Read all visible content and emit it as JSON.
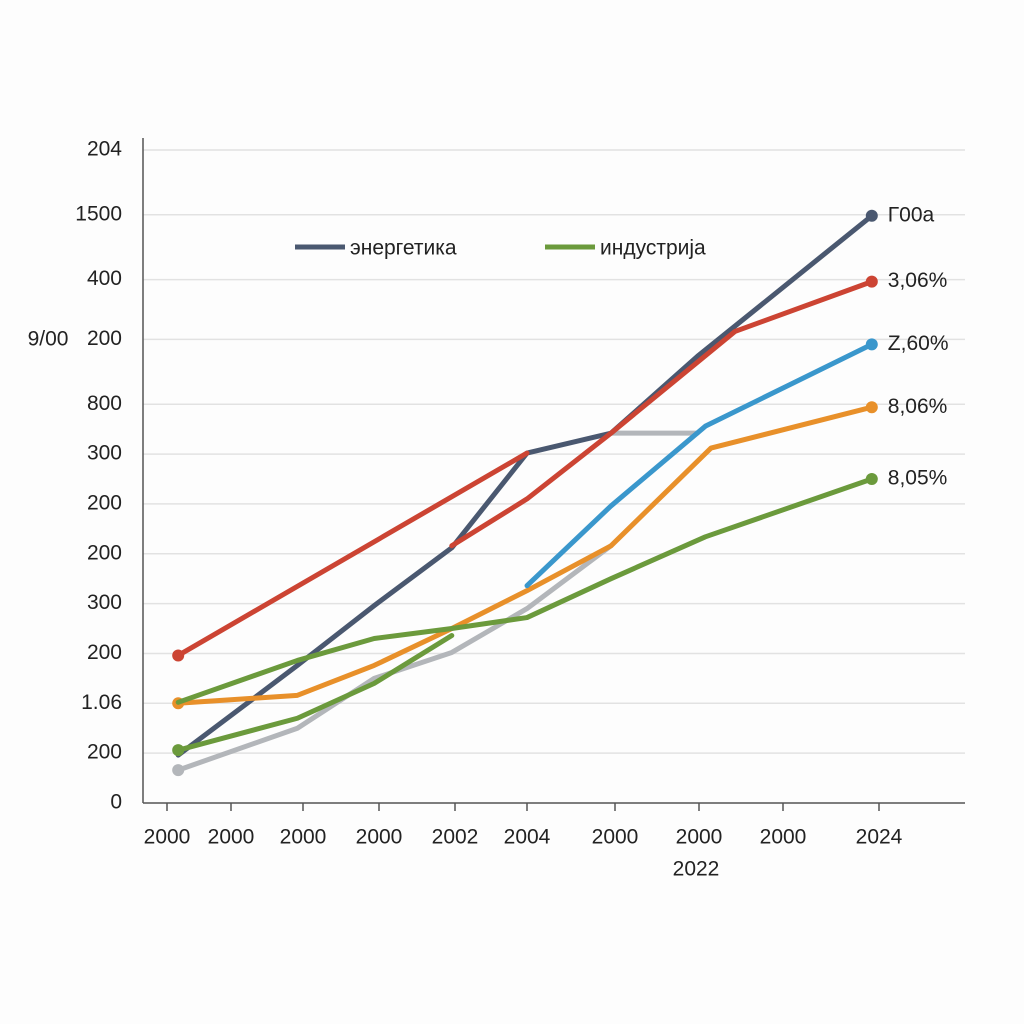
{
  "chart_data": {
    "type": "line",
    "ylabel": "9/00",
    "xlabel": "2022",
    "xlim": [
      0,
      10.3
    ],
    "ylim": [
      0,
      13.1
    ],
    "grid": true,
    "legend": "top",
    "xticks": [
      {
        "value": 0.3,
        "label": "2000"
      },
      {
        "value": 1.1,
        "label": "2000"
      },
      {
        "value": 2.0,
        "label": "2000"
      },
      {
        "value": 2.95,
        "label": "2000"
      },
      {
        "value": 3.9,
        "label": "2002"
      },
      {
        "value": 4.8,
        "label": "2004"
      },
      {
        "value": 5.9,
        "label": "2000"
      },
      {
        "value": 6.95,
        "label": "2000"
      },
      {
        "value": 8.0,
        "label": "2000"
      },
      {
        "value": 9.2,
        "label": "2024"
      }
    ],
    "yticks": [
      0,
      {
        "value": 1,
        "label": "200"
      },
      {
        "value": 2,
        "label": "1.06"
      },
      {
        "value": 3,
        "label": "200"
      },
      {
        "value": 4,
        "label": "300"
      },
      {
        "value": 5,
        "label": "200"
      },
      {
        "value": 6,
        "label": "200"
      },
      {
        "value": 7,
        "label": "300"
      },
      {
        "value": 8,
        "label": "800"
      },
      {
        "value": 9.3,
        "label": "200"
      },
      {
        "value": 10.5,
        "label": "400"
      },
      {
        "value": 11.8,
        "label": "1500"
      },
      {
        "value": 13.1,
        "label": "204"
      }
    ],
    "series": [
      {
        "color": "#b3b6ba",
        "x": [
          0.44,
          1.93,
          2.89,
          3.86,
          4.8,
          5.85
        ],
        "values": [
          0.66,
          1.5,
          2.5,
          3.02,
          3.9,
          5.16
        ],
        "start_marker": true
      },
      {
        "color": "#b3b6ba",
        "x": [
          5.85,
          6.93
        ],
        "values": [
          7.42,
          7.42
        ]
      },
      {
        "name": "энергетика",
        "color": "#4a5870",
        "x": [
          0.44,
          1.93,
          2.89,
          3.86,
          4.8,
          5.85,
          6.93,
          9.11
        ],
        "values": [
          0.96,
          2.76,
          3.96,
          5.12,
          7.02,
          7.42,
          8.96,
          11.78
        ],
        "end_label": "Г00a"
      },
      {
        "color": "#6b9a3c",
        "x": [
          0.44,
          1.93,
          2.89,
          3.86
        ],
        "values": [
          1.06,
          1.7,
          2.4,
          3.36
        ],
        "start_marker": true
      },
      {
        "color": "#e8902a",
        "x": [
          0.44,
          1.93,
          2.89,
          3.86,
          4.8,
          5.85,
          7.1,
          9.11
        ],
        "values": [
          2.0,
          2.16,
          2.76,
          3.5,
          4.26,
          5.16,
          7.12,
          7.94
        ],
        "end_label": "8,06%",
        "start_marker": true
      },
      {
        "name": "индустрија",
        "color": "#6b9a3c",
        "x": [
          0.44,
          1.93,
          2.89,
          3.86,
          4.8,
          5.85,
          7.03,
          9.11
        ],
        "values": [
          2.02,
          2.86,
          3.3,
          3.5,
          3.72,
          4.5,
          5.34,
          6.5
        ],
        "end_label": "8,05%"
      },
      {
        "color": "#3a97cc",
        "x": [
          4.8,
          5.85,
          7.03,
          9.11
        ],
        "values": [
          4.36,
          5.96,
          7.56,
          9.2
        ],
        "end_label": "Z,60%"
      },
      {
        "color": "#cc4433",
        "x": [
          0.44,
          4.8
        ],
        "values": [
          2.96,
          7.02
        ],
        "start_marker": true
      },
      {
        "color": "#cc4433",
        "x": [
          3.86,
          4.8,
          5.85,
          7.4,
          9.11
        ],
        "values": [
          5.16,
          6.1,
          7.42,
          9.46,
          10.46
        ],
        "end_label": "3,06%"
      }
    ]
  }
}
